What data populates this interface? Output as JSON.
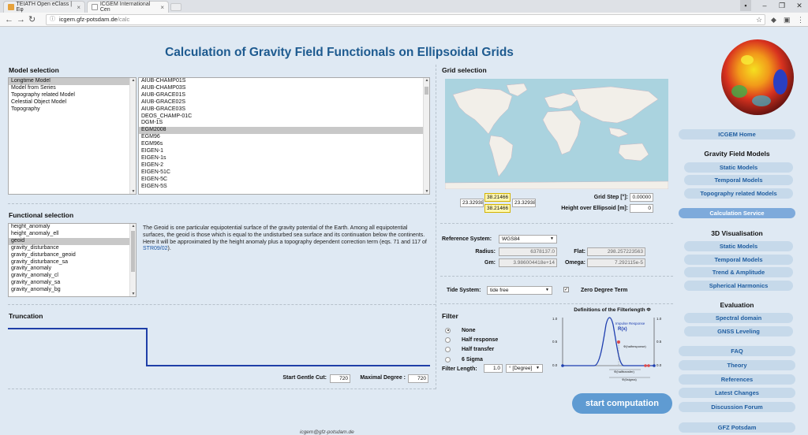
{
  "browser": {
    "tabs": [
      {
        "title": "TEIATH Open eClass | Εφ"
      },
      {
        "title": "ICGEM International Cen"
      }
    ],
    "url_host": "icgem.gfz-potsdam.de",
    "url_path": "/calc"
  },
  "page": {
    "title": "Calculation of Gravity Field Functionals on Ellipsoidal Grids",
    "footer_email": "icgem@gfz-potsdam.de"
  },
  "model_selection": {
    "heading": "Model selection",
    "categories": [
      "Longtime Model",
      "Model from Series",
      "Topography related Model",
      "Celestial Object Model",
      "Topography"
    ],
    "selected_category": "Longtime Model",
    "models": [
      "AIUB-CHAMP01S",
      "AIUB-CHAMP03S",
      "AIUB-GRACE01S",
      "AIUB-GRACE02S",
      "AIUB-GRACE03S",
      "DEOS_CHAMP-01C",
      "DGM-1S",
      "EGM2008",
      "EGM96",
      "EGM96s",
      "EIGEN-1",
      "EIGEN-1s",
      "EIGEN-2",
      "EIGEN-51C",
      "EIGEN-5C",
      "EIGEN-5S"
    ],
    "selected_model": "EGM2008"
  },
  "functional_selection": {
    "heading": "Functional selection",
    "items": [
      "height_anomaly",
      "height_anomaly_ell",
      "geoid",
      "gravity_disturbance",
      "gravity_disturbance_geoid",
      "gravity_disturbance_sa",
      "gravity_anomaly",
      "gravity_anomaly_cl",
      "gravity_anomaly_sa",
      "gravity_anomaly_bg"
    ],
    "selected": "geoid",
    "description_1": "The Geoid is one particular equipotential surface of the gravity potential of the Earth. Among all equipotential surfaces, the geoid is those which is equal to the undisturbed sea surface and its continuation below the continents.",
    "description_2": "Here it will be approximated by the height anomaly plus a topography dependent correction term (eqs. 71 and 117 of ",
    "description_link": "STR09/02",
    "description_end": ")."
  },
  "grid_selection": {
    "heading": "Grid selection",
    "north": "38.21466",
    "south": "38.21466",
    "west": "23.32938",
    "east": "23.32938",
    "grid_step_label": "Grid Step [°]:",
    "grid_step": "0.00000",
    "height_label": "Height over Ellipsoid [m]:",
    "height": "0"
  },
  "reference": {
    "system_label": "Reference System:",
    "system": "WGS84",
    "radius_label": "Radius:",
    "radius": "6378137.0",
    "flat_label": "Flat:",
    "flat": "298.257223563",
    "gm_label": "Gm:",
    "gm": "3.986004418e+14",
    "omega_label": "Omega:",
    "omega": "7.292115e-5"
  },
  "tide": {
    "label": "Tide System:",
    "value": "tide free",
    "zero_degree_label": "Zero Degree Term",
    "zero_degree_checked": true
  },
  "truncation": {
    "heading": "Truncation",
    "start_label": "Start Gentle Cut:",
    "start_value": "720",
    "max_label": "Maximal Degree :",
    "max_value": "720"
  },
  "filter": {
    "heading": "Filter",
    "options": [
      "None",
      "Half response",
      "Half transfer",
      "6 Sigma"
    ],
    "selected": "None",
    "length_label": "Filter Length:",
    "length_value": "1.0",
    "unit": "° [Degree]",
    "chart_title": "Definitions of the Filterlength Φ",
    "impulse_label": "Impulse Response",
    "rx_label": "R(x)",
    "half_response": "Φ(halfresponse)",
    "half_transfer": "Φ(halftransfer)",
    "sigma": "Φ(6sigma)",
    "y_ticks": [
      "1.0",
      "0.5",
      "0.0"
    ]
  },
  "start_button": "start computation",
  "sidebar": {
    "home": "ICGEM Home",
    "gravity_head": "Gravity Field Models",
    "gravity_items": [
      "Static Models",
      "Temporal Models",
      "Topography related Models"
    ],
    "calc_service": "Calculation Service",
    "vis_head": "3D Visualisation",
    "vis_items": [
      "Static Models",
      "Temporal Models",
      "Trend & Amplitude",
      "Spherical Harmonics"
    ],
    "eval_head": "Evaluation",
    "eval_items": [
      "Spectral domain",
      "GNSS Leveling"
    ],
    "misc_items": [
      "FAQ",
      "Theory",
      "References",
      "Latest Changes",
      "Discussion Forum"
    ],
    "gfz": "GFZ Potsdam"
  },
  "colors": {
    "accent": "#1d5a8f",
    "sidebar_button": "#c6d9ea",
    "sidebar_active": "#7eaadb",
    "truncation_line": "#1f3fa8"
  }
}
